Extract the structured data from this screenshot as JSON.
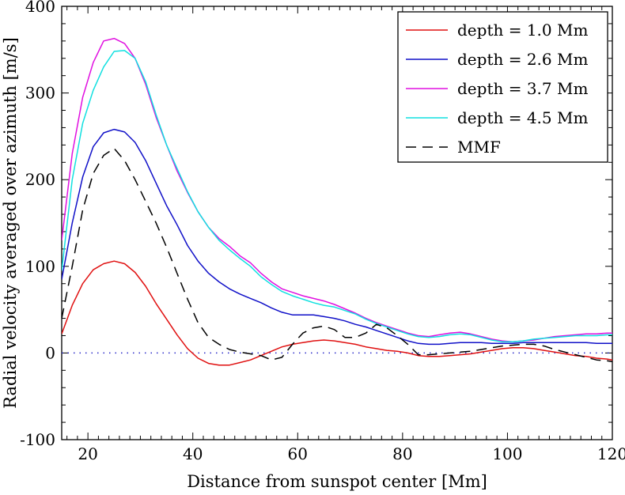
{
  "chart_data": {
    "type": "line",
    "title": "",
    "xlabel": "Distance from sunspot center [Mm]",
    "ylabel": "Radial velocity averaged over azimuth [m/s]",
    "xlim": [
      15,
      120
    ],
    "ylim": [
      -100,
      400
    ],
    "xticks": [
      20,
      40,
      60,
      80,
      100,
      120
    ],
    "yticks": [
      -100,
      0,
      100,
      200,
      300,
      400
    ],
    "xtick_labels": [
      "20",
      "40",
      "60",
      "80",
      "100",
      "120"
    ],
    "ytick_labels": [
      "-100",
      "0",
      "100",
      "200",
      "300",
      "400"
    ],
    "reference_line": {
      "y": 0,
      "style": "dotted",
      "color": "#2828c8"
    },
    "legend_position": "top-right",
    "series": [
      {
        "name": "depth = 1.0 Mm",
        "color": "#e01010",
        "dash": "solid",
        "x": [
          15,
          17,
          19,
          21,
          23,
          25,
          27,
          29,
          31,
          33,
          35,
          37,
          39,
          41,
          43,
          45,
          47,
          49,
          51,
          53,
          55,
          57,
          59,
          61,
          63,
          65,
          67,
          69,
          71,
          73,
          75,
          77,
          79,
          81,
          83,
          85,
          87,
          89,
          91,
          93,
          95,
          97,
          99,
          101,
          103,
          105,
          107,
          109,
          111,
          113,
          115,
          117,
          119,
          120
        ],
        "y": [
          22,
          55,
          80,
          96,
          103,
          106,
          103,
          93,
          77,
          57,
          39,
          21,
          5,
          -6,
          -12,
          -14,
          -14,
          -11,
          -8,
          -3,
          2,
          7,
          10,
          12,
          14,
          15,
          14,
          12,
          10,
          7,
          5,
          3,
          2,
          0,
          -3,
          -4,
          -4,
          -3,
          -2,
          -1,
          1,
          3,
          5,
          6,
          6,
          5,
          3,
          1,
          -1,
          -3,
          -4,
          -6,
          -7,
          -8
        ]
      },
      {
        "name": "depth = 2.6 Mm",
        "color": "#1010c8",
        "dash": "solid",
        "x": [
          15,
          17,
          19,
          21,
          23,
          25,
          27,
          29,
          31,
          33,
          35,
          37,
          39,
          41,
          43,
          45,
          47,
          49,
          51,
          53,
          55,
          57,
          59,
          61,
          63,
          65,
          67,
          69,
          71,
          73,
          75,
          77,
          79,
          81,
          83,
          85,
          87,
          89,
          91,
          93,
          95,
          97,
          99,
          101,
          103,
          105,
          107,
          109,
          111,
          113,
          115,
          117,
          119,
          120
        ],
        "y": [
          85,
          150,
          203,
          238,
          254,
          258,
          255,
          243,
          222,
          196,
          170,
          148,
          124,
          106,
          92,
          82,
          74,
          68,
          63,
          58,
          52,
          47,
          44,
          44,
          44,
          42,
          40,
          37,
          33,
          30,
          26,
          22,
          18,
          14,
          11,
          10,
          10,
          11,
          12,
          12,
          12,
          11,
          11,
          11,
          12,
          12,
          12,
          12,
          12,
          12,
          12,
          11,
          11,
          11
        ]
      },
      {
        "name": "depth = 3.7 Mm",
        "color": "#e010e0",
        "dash": "solid",
        "x": [
          15,
          17,
          19,
          21,
          23,
          25,
          27,
          29,
          31,
          33,
          35,
          37,
          39,
          41,
          43,
          45,
          47,
          49,
          51,
          53,
          55,
          57,
          59,
          61,
          63,
          65,
          67,
          69,
          71,
          73,
          75,
          77,
          79,
          81,
          83,
          85,
          87,
          89,
          91,
          93,
          95,
          97,
          99,
          101,
          103,
          105,
          107,
          109,
          111,
          113,
          115,
          117,
          119,
          120
        ],
        "y": [
          130,
          230,
          295,
          335,
          360,
          363,
          357,
          340,
          310,
          272,
          240,
          210,
          185,
          163,
          145,
          132,
          123,
          112,
          104,
          92,
          82,
          74,
          70,
          66,
          63,
          60,
          56,
          51,
          46,
          40,
          35,
          31,
          27,
          23,
          20,
          19,
          21,
          23,
          24,
          22,
          19,
          16,
          14,
          13,
          14,
          15,
          17,
          19,
          20,
          21,
          22,
          22,
          23,
          23
        ]
      },
      {
        "name": "depth = 4.5 Mm",
        "color": "#10e0e0",
        "dash": "solid",
        "x": [
          15,
          17,
          19,
          21,
          23,
          25,
          27,
          29,
          31,
          33,
          35,
          37,
          39,
          41,
          43,
          45,
          47,
          49,
          51,
          53,
          55,
          57,
          59,
          61,
          63,
          65,
          67,
          69,
          71,
          73,
          75,
          77,
          79,
          81,
          83,
          85,
          87,
          89,
          91,
          93,
          95,
          97,
          99,
          101,
          103,
          105,
          107,
          109,
          111,
          113,
          115,
          117,
          119,
          120
        ],
        "y": [
          95,
          200,
          265,
          303,
          330,
          348,
          349,
          340,
          313,
          275,
          240,
          213,
          186,
          163,
          145,
          130,
          119,
          109,
          100,
          88,
          79,
          71,
          66,
          62,
          58,
          55,
          53,
          49,
          45,
          39,
          34,
          30,
          26,
          22,
          19,
          18,
          19,
          21,
          22,
          21,
          18,
          15,
          13,
          13,
          14,
          16,
          17,
          18,
          19,
          20,
          20,
          20,
          21,
          21
        ]
      },
      {
        "name": "MMF",
        "color": "#000000",
        "dash": "dashed",
        "x": [
          15,
          17,
          19,
          21,
          23,
          25,
          27,
          29,
          31,
          33,
          35,
          37,
          39,
          41,
          43,
          45,
          47,
          49,
          51,
          53,
          55,
          57,
          59,
          61,
          63,
          65,
          67,
          69,
          71,
          73,
          75,
          77,
          79,
          81,
          83,
          85,
          87,
          89,
          91,
          93,
          95,
          97,
          99,
          101,
          103,
          105,
          107,
          109,
          111,
          113,
          115,
          117,
          119,
          120
        ],
        "y": [
          40,
          100,
          165,
          207,
          228,
          236,
          222,
          200,
          175,
          150,
          122,
          92,
          62,
          35,
          18,
          10,
          4,
          1,
          -1,
          -3,
          -8,
          -5,
          10,
          23,
          29,
          31,
          27,
          18,
          18,
          23,
          33,
          29,
          20,
          10,
          -2,
          -2,
          -1,
          0,
          1,
          2,
          4,
          6,
          8,
          9,
          10,
          10,
          8,
          4,
          1,
          -2,
          -5,
          -8,
          -9,
          -10
        ]
      }
    ]
  }
}
